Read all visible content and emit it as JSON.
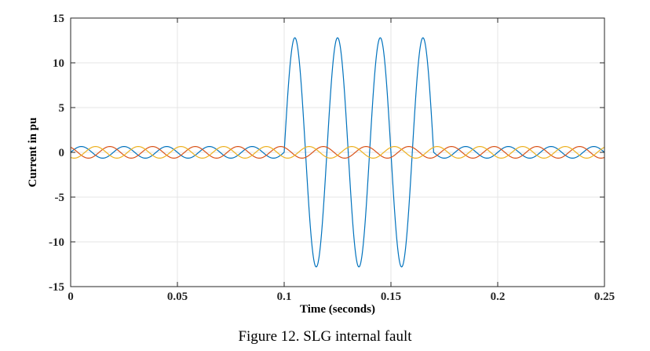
{
  "chart_data": {
    "type": "line",
    "title": "",
    "xlabel": "Time (seconds)",
    "ylabel": "Current in pu",
    "xlim": [
      0,
      0.25
    ],
    "ylim": [
      -15,
      15
    ],
    "xticks": [
      0,
      0.05,
      0.1,
      0.15,
      0.2,
      0.25
    ],
    "xtick_labels": [
      "0",
      "0.05",
      "0.1",
      "0.15",
      "0.2",
      "0.25"
    ],
    "yticks": [
      -15,
      -10,
      -5,
      0,
      5,
      10,
      15
    ],
    "ytick_labels": [
      "-15",
      "-10",
      "-5",
      "0",
      "5",
      "10",
      "15"
    ],
    "grid": true,
    "legend": "none",
    "frequency_hz": 50,
    "fault_interval": [
      0.1,
      0.17
    ],
    "series": [
      {
        "color": "#0072BD",
        "prefault_amplitude": 0.65,
        "fault_amplitude": 12.8,
        "phase_deg": 0
      },
      {
        "color": "#D95319",
        "prefault_amplitude": 0.65,
        "fault_amplitude": 0.65,
        "phase_deg": 120
      },
      {
        "color": "#EDB120",
        "prefault_amplitude": 0.65,
        "fault_amplitude": 0.65,
        "phase_deg": -120
      }
    ]
  },
  "caption": "Figure 12. SLG internal fault"
}
